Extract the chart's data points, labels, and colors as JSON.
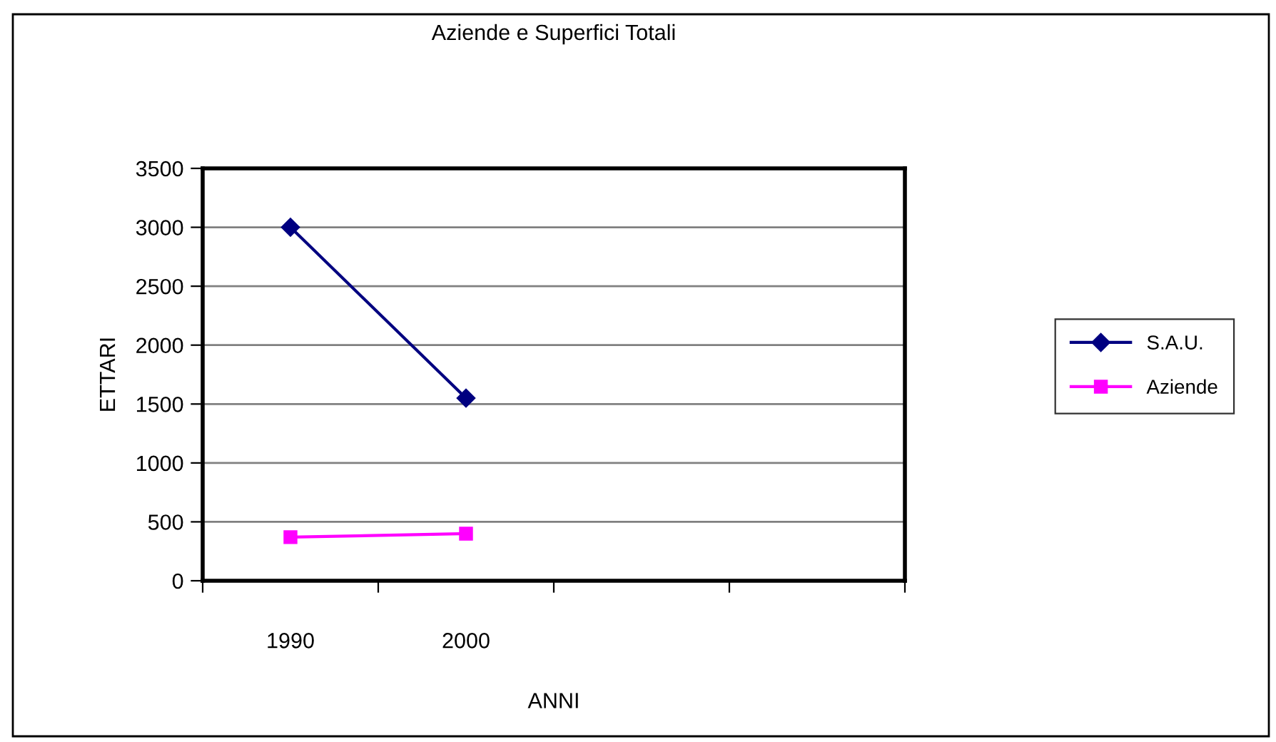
{
  "chart_data": {
    "type": "line",
    "title": "Aziende e Superfici Totali",
    "xlabel": "ANNI",
    "ylabel": "ETTARI",
    "categories": [
      "1990",
      "2000",
      null,
      null
    ],
    "series": [
      {
        "name": "S.A.U.",
        "color": "#000080",
        "values": [
          3000,
          1550,
          null,
          null
        ],
        "marker": "diamond"
      },
      {
        "name": "Aziende",
        "color": "#ff00ff",
        "values": [
          370,
          400,
          null,
          null
        ],
        "marker": "square"
      }
    ],
    "ylim": [
      0,
      3500
    ],
    "yticks": [
      0,
      500,
      1000,
      1500,
      2000,
      2500,
      3000,
      3500
    ],
    "grid": "y",
    "legend": "right",
    "line_style": "solid"
  }
}
